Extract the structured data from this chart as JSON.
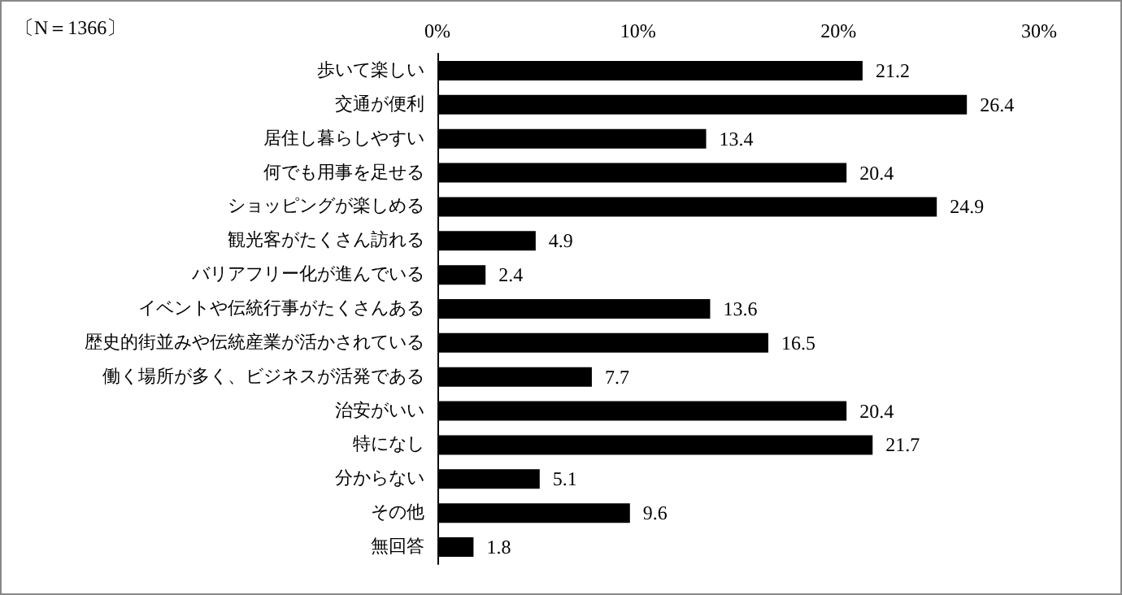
{
  "chart_data": {
    "type": "bar",
    "orientation": "horizontal",
    "annotations": [
      "〔N＝1366〕"
    ],
    "categories": [
      "歩いて楽しい",
      "交通が便利",
      "居住し暮らしやすい",
      "何でも用事を足せる",
      "ショッピングが楽しめる",
      "観光客がたくさん訪れる",
      "バリアフリー化が進んでいる",
      "イベントや伝統行事がたくさんある",
      "歴史的街並みや伝統産業が活かされている",
      "働く場所が多く、ビジネスが活発である",
      "治安がいい",
      "特になし",
      "分からない",
      "その他",
      "無回答"
    ],
    "values": [
      21.2,
      26.4,
      13.4,
      20.4,
      24.9,
      4.9,
      2.4,
      13.6,
      16.5,
      7.7,
      20.4,
      21.7,
      5.1,
      9.6,
      1.8
    ],
    "color": "#000000",
    "data_labels": true,
    "grid": false,
    "xlim": [
      0,
      30
    ],
    "xticks": [
      {
        "value": 0,
        "label": "0%"
      },
      {
        "value": 10,
        "label": "10%"
      },
      {
        "value": 20,
        "label": "20%"
      },
      {
        "value": 30,
        "label": "30%"
      }
    ]
  }
}
